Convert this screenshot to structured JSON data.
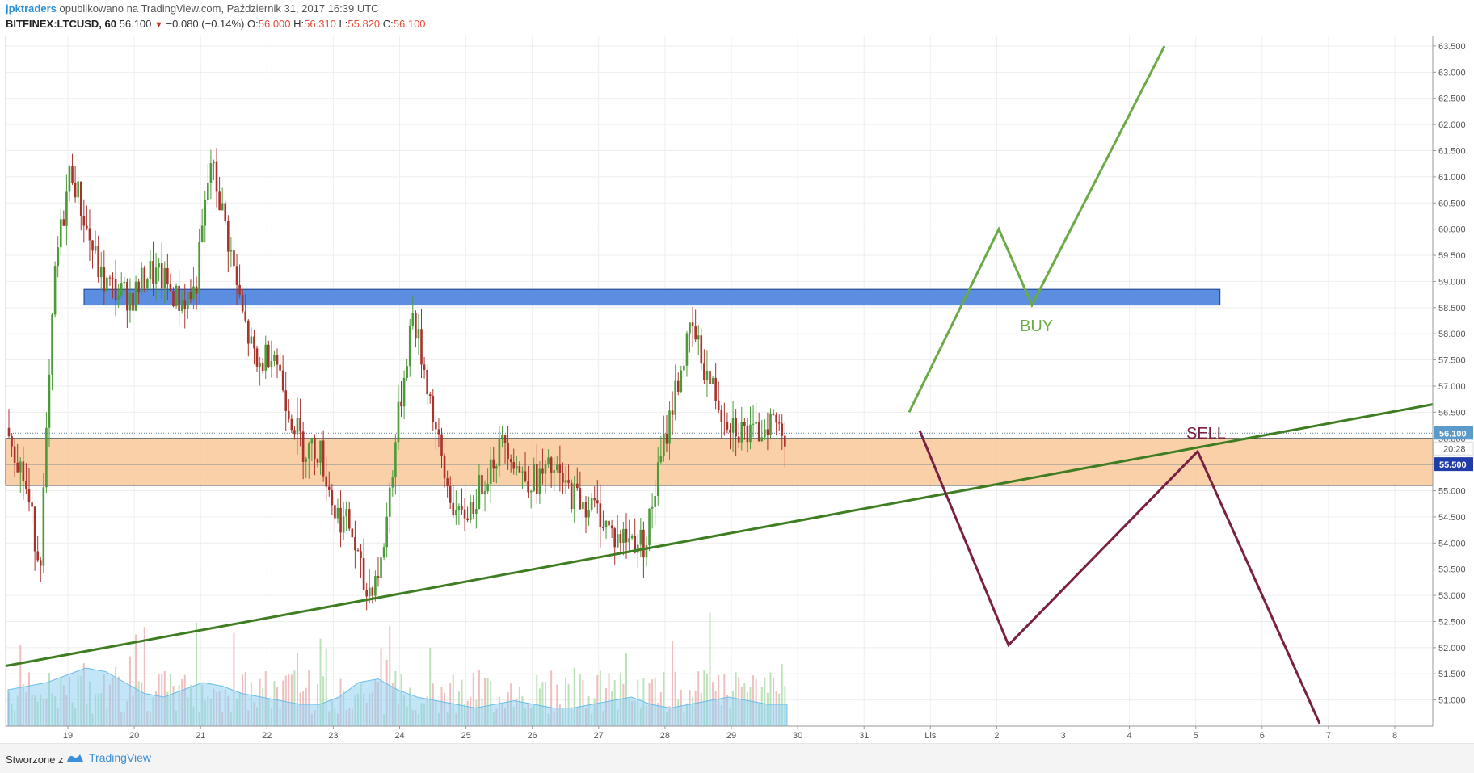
{
  "header": {
    "author": "jpktraders",
    "published_text": "opublikowano na TradingView.com, Październik 31, 2017 16:39 UTC",
    "symbol": "BITFINEX:LTCUSD, 60",
    "last": "56.100",
    "change": "−0.080 (−0.14%)",
    "o_label": "O:",
    "o": "56.000",
    "h_label": "H:",
    "h": "56.310",
    "l_label": "L:",
    "l": "55.820",
    "c_label": "C:",
    "c": "56.100"
  },
  "footer": {
    "created_with": "Stworzone z",
    "brand": "TradingView"
  },
  "chart_data": {
    "type": "candlestick",
    "title": "",
    "xlabel": "",
    "ylabel": "",
    "ylim": [
      50.5,
      63.7
    ],
    "y_ticks": [
      "63.500",
      "63.000",
      "62.500",
      "62.000",
      "61.500",
      "61.000",
      "60.500",
      "60.000",
      "59.500",
      "59.000",
      "58.500",
      "58.000",
      "57.500",
      "57.000",
      "56.500",
      "56.000",
      "55.500",
      "55.000",
      "54.500",
      "54.000",
      "53.500",
      "53.000",
      "52.500",
      "52.000",
      "51.500",
      "51.000"
    ],
    "x_tick_labels": [
      "19",
      "20",
      "21",
      "22",
      "23",
      "24",
      "25",
      "26",
      "27",
      "28",
      "29",
      "30",
      "31",
      "Lis",
      "2",
      "3",
      "4",
      "5",
      "6",
      "7",
      "8"
    ],
    "grid": true,
    "colors": {
      "up": "#4c9a3a",
      "down": "#a8322c",
      "vol_up": "#9fd59b",
      "vol_down": "#e8a4a4",
      "vol_ma": "#8fd0f2",
      "resistance_zone": "#5b8de0",
      "support_zone": "#f9c899",
      "trend_line": "#3f7d22",
      "buy_path": "#6aab45",
      "sell_path": "#7a2043"
    },
    "price_badges": {
      "last": "56.100",
      "countdown": "20:28",
      "level": "55.500"
    },
    "resistance_zone": {
      "from": 58.55,
      "to": 58.85,
      "x_start": "19",
      "x_end": "5"
    },
    "support_zone": {
      "from": 55.1,
      "to": 56.0
    },
    "level_line": 55.5,
    "trend_line": {
      "start": 51.65,
      "end": 56.65
    },
    "annotations": {
      "buy": "BUY",
      "sell": "SELL"
    },
    "buy_path": [
      56.5,
      60.0,
      58.55,
      63.5
    ],
    "sell_path": [
      56.15,
      52.05,
      55.75,
      50.55
    ],
    "price_path": [
      56.2,
      55.2,
      53.6,
      59.3,
      61.2,
      60.0,
      59.0,
      58.8,
      58.7,
      59.2,
      59.0,
      58.6,
      58.8,
      61.3,
      60.0,
      58.4,
      57.3,
      57.8,
      56.6,
      55.8,
      55.8,
      54.6,
      54.3,
      53.0,
      53.6,
      56.2,
      58.4,
      57.0,
      55.3,
      54.4,
      54.8,
      55.5,
      56.0,
      55.3,
      55.2,
      55.4,
      55.0,
      54.8,
      54.6,
      54.1,
      54.1,
      54.0,
      55.6,
      57.0,
      58.1,
      57.2,
      56.5,
      56.2,
      56.0,
      56.4,
      56.1
    ],
    "volume_ma": [
      0.5,
      0.55,
      0.6,
      0.7,
      0.8,
      0.75,
      0.6,
      0.45,
      0.4,
      0.5,
      0.6,
      0.55,
      0.45,
      0.4,
      0.35,
      0.3,
      0.3,
      0.4,
      0.6,
      0.65,
      0.5,
      0.4,
      0.35,
      0.3,
      0.25,
      0.3,
      0.35,
      0.3,
      0.25,
      0.25,
      0.3,
      0.35,
      0.4,
      0.3,
      0.25,
      0.3,
      0.35,
      0.4,
      0.35,
      0.3,
      0.3
    ]
  }
}
